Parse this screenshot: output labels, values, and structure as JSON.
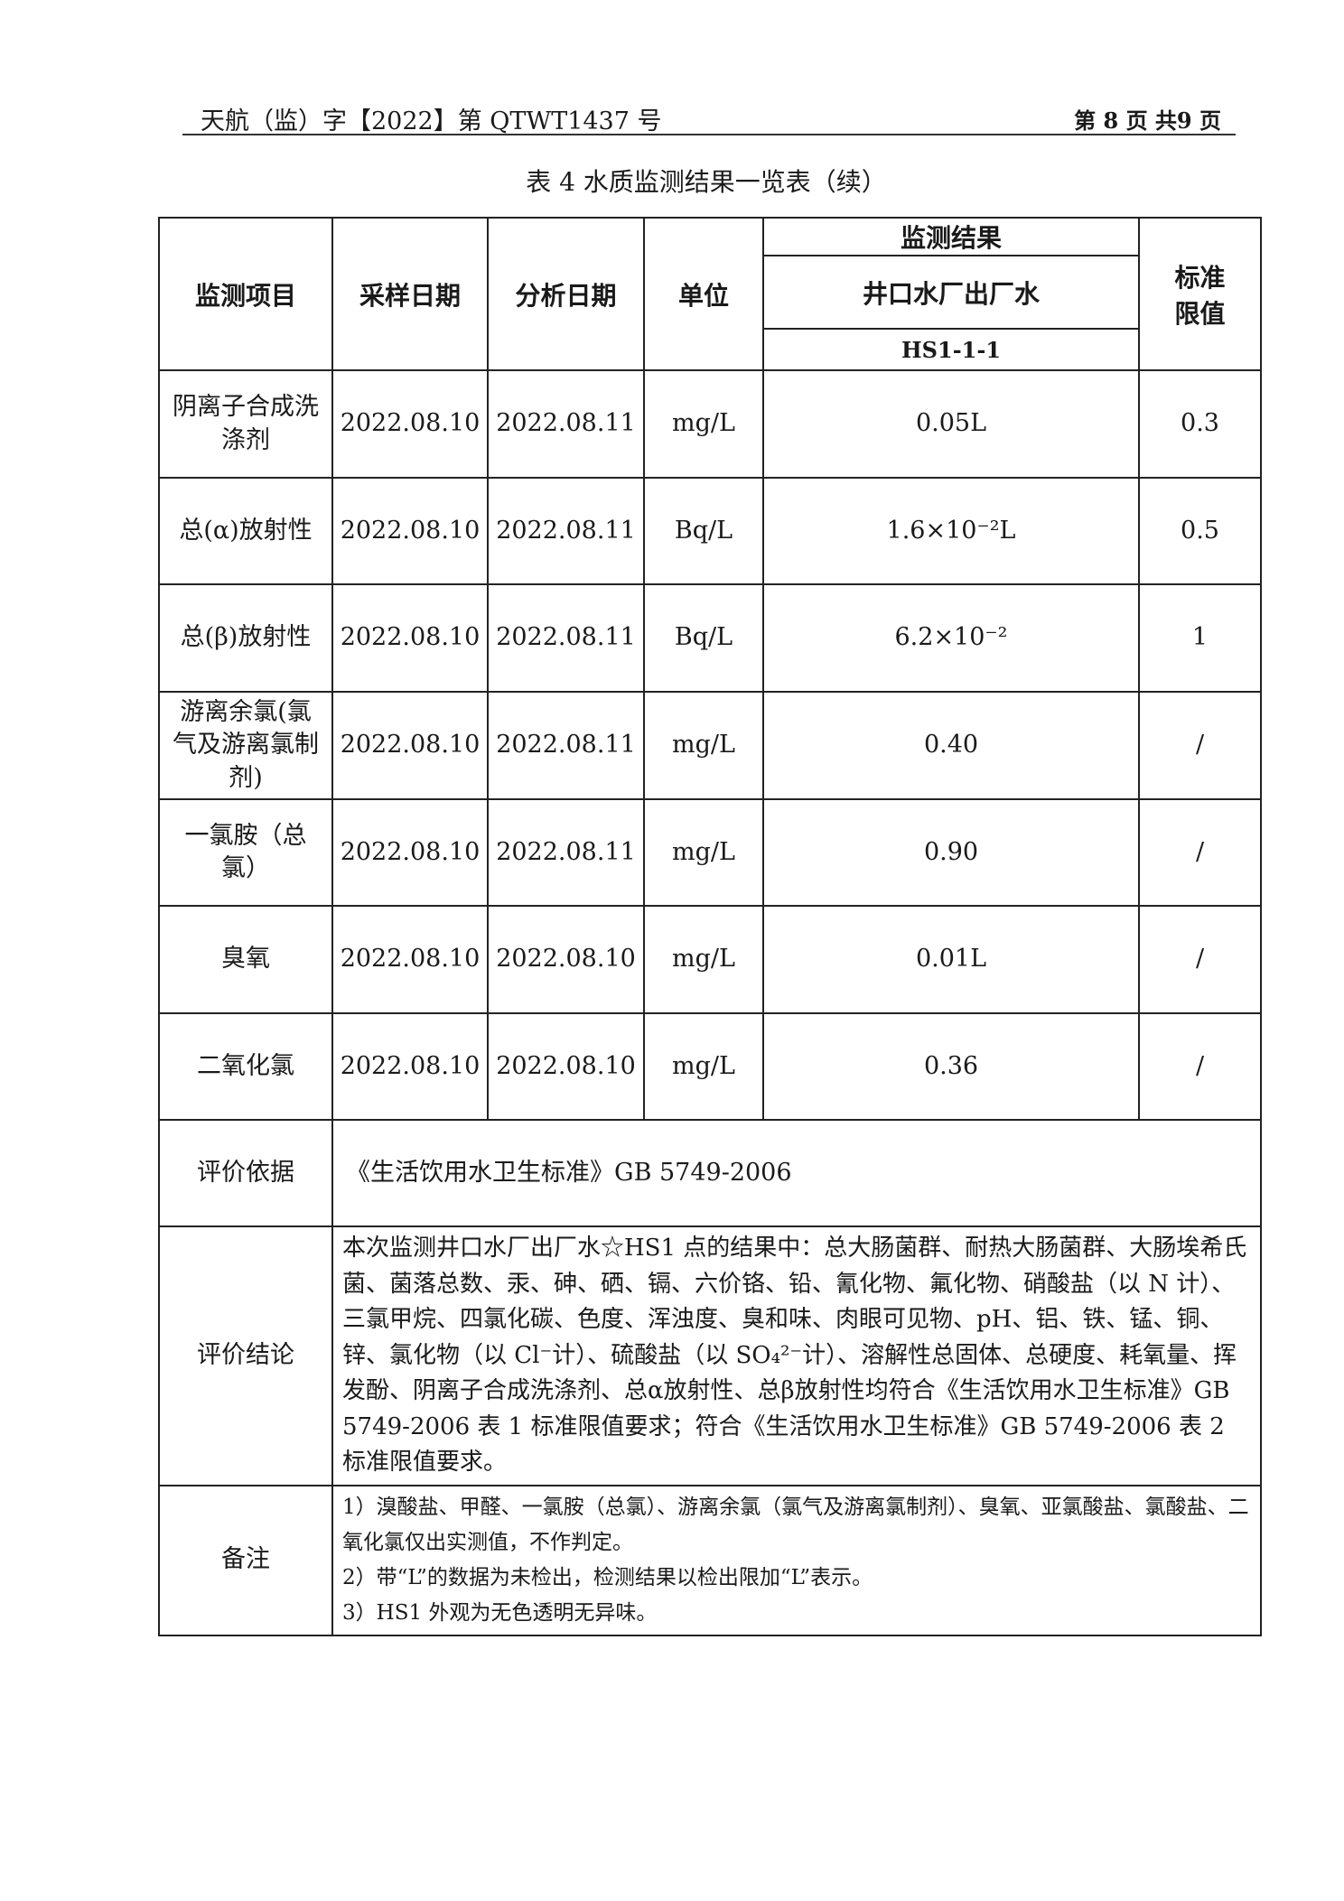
{
  "header": {
    "doc_number": "天航（监）字【2022】第 QTWT1437 号",
    "page_info": "第 8 页 共9 页"
  },
  "title": "表 4  水质监测结果一览表（续）",
  "table": {
    "headers": {
      "item": "监测项目",
      "sampling_date": "采样日期",
      "analysis_date": "分析日期",
      "unit": "单位",
      "results": "监测结果",
      "site": "井口水厂出厂水",
      "sample_id": "HS1-1-1",
      "limit": "标准限值"
    },
    "rows": [
      {
        "item": "阴离子合成洗涤剂",
        "sampling_date": "2022.08.10",
        "analysis_date": "2022.08.11",
        "unit": "mg/L",
        "result": "0.05L",
        "limit": "0.3"
      },
      {
        "item": "总(α)放射性",
        "sampling_date": "2022.08.10",
        "analysis_date": "2022.08.11",
        "unit": "Bq/L",
        "result": "1.6×10⁻²L",
        "limit": "0.5"
      },
      {
        "item": "总(β)放射性",
        "sampling_date": "2022.08.10",
        "analysis_date": "2022.08.11",
        "unit": "Bq/L",
        "result": "6.2×10⁻²",
        "limit": "1"
      },
      {
        "item": "游离余氯(氯气及游离氯制剂)",
        "sampling_date": "2022.08.10",
        "analysis_date": "2022.08.11",
        "unit": "mg/L",
        "result": "0.40",
        "limit": "/"
      },
      {
        "item": "一氯胺（总氯）",
        "sampling_date": "2022.08.10",
        "analysis_date": "2022.08.11",
        "unit": "mg/L",
        "result": "0.90",
        "limit": "/"
      },
      {
        "item": "臭氧",
        "sampling_date": "2022.08.10",
        "analysis_date": "2022.08.10",
        "unit": "mg/L",
        "result": "0.01L",
        "limit": "/"
      },
      {
        "item": "二氧化氯",
        "sampling_date": "2022.08.10",
        "analysis_date": "2022.08.10",
        "unit": "mg/L",
        "result": "0.36",
        "limit": "/"
      }
    ],
    "basis_label": "评价依据",
    "basis": "《生活饮用水卫生标准》GB 5749-2006",
    "conclusion_label": "评价结论",
    "conclusion": "本次监测井口水厂出厂水☆HS1 点的结果中：总大肠菌群、耐热大肠菌群、大肠埃希氏菌、菌落总数、汞、砷、硒、镉、六价铬、铅、氰化物、氟化物、硝酸盐（以 N 计）、三氯甲烷、四氯化碳、色度、浑浊度、臭和味、肉眼可见物、pH、铝、铁、锰、铜、锌、氯化物（以 Cl⁻计）、硫酸盐（以 SO₄²⁻计）、溶解性总固体、总硬度、耗氧量、挥发酚、阴离子合成洗涤剂、总α放射性、总β放射性均符合《生活饮用水卫生标准》GB 5749-2006 表 1 标准限值要求；符合《生活饮用水卫生标准》GB 5749-2006 表 2 标准限值要求。",
    "notes_label": "备注",
    "notes": [
      "1）溴酸盐、甲醛、一氯胺（总氯）、游离余氯（氯气及游离氯制剂）、臭氧、亚氯酸盐、氯酸盐、二氧化氯仅出实测值，不作判定。",
      "2）带“L”的数据为未检出，检测结果以检出限加“L”表示。",
      "3）HS1 外观为无色透明无异味。"
    ]
  }
}
